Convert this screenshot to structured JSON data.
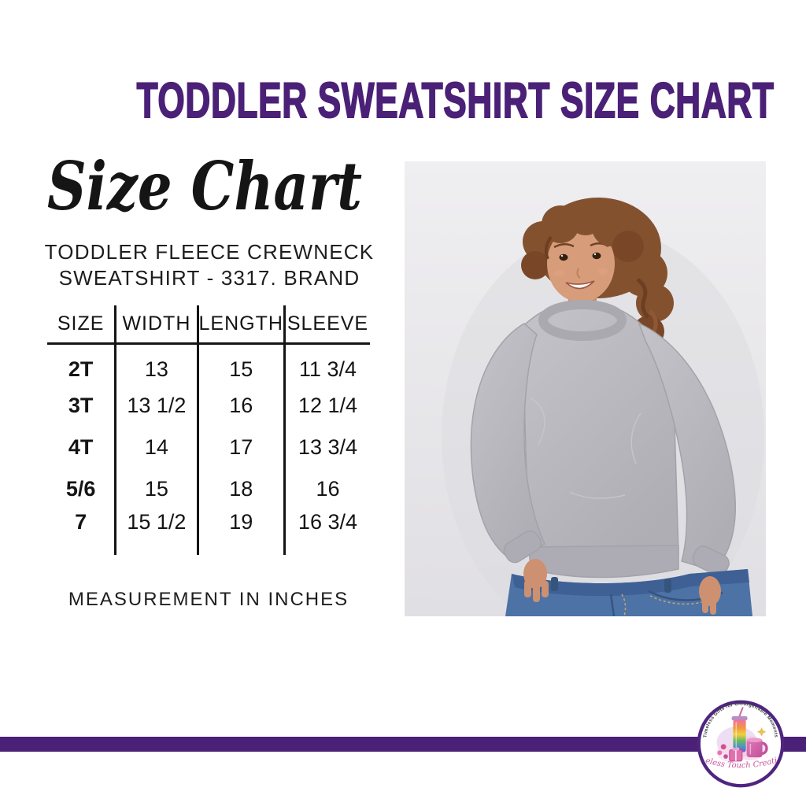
{
  "header": {
    "title": "TODDLER SWEATSHIRT SIZE CHART",
    "title_color": "#4b2077"
  },
  "intro": {
    "script_heading": "Size Chart",
    "subtitle_line1": "TODDLER FLEECE CREWNECK",
    "subtitle_line2": "SWEATSHIRT - 3317. BRAND"
  },
  "chart_data": {
    "type": "table",
    "title": "Size Chart",
    "columns": [
      "SIZE",
      "WIDTH",
      "LENGTH",
      "SLEEVE"
    ],
    "rows": [
      [
        "2T",
        "13",
        "15",
        "11 3/4"
      ],
      [
        "3T",
        "13 1/2",
        "16",
        "12 1/4"
      ],
      [
        "4T",
        "14",
        "17",
        "13 3/4"
      ],
      [
        "5/6",
        "15",
        "18",
        "16"
      ],
      [
        "7",
        "15 1/2",
        "19",
        "16 3/4"
      ]
    ],
    "note": "MEASUREMENT IN INCHES",
    "units": "inches"
  },
  "photo": {
    "subject": "toddler wearing gray fleece crewneck sweatshirt and jeans",
    "background_color": "#e7e6e9",
    "sweatshirt_color": "#bab9bf",
    "jeans_color": "#4d72a6",
    "hair_color": "#84512f",
    "skin_color": "#d79d7a"
  },
  "footer": {
    "bar_color": "#4b2077",
    "logo": {
      "arc_text": "Timeless Gifts for Unforgettable Moments",
      "name": "Timeless Touch Creations",
      "name_color": "#c8529e",
      "ring_color": "#4f2580"
    }
  }
}
